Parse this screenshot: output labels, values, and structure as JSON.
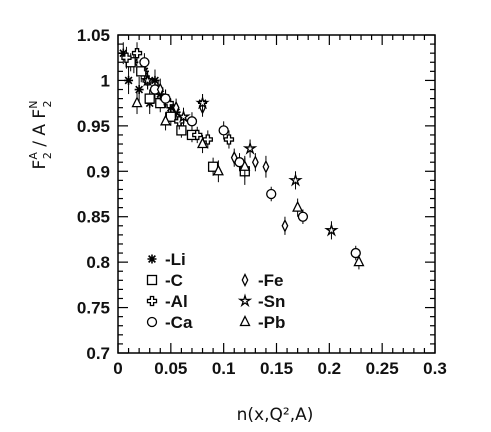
{
  "chart_data": {
    "type": "scatter",
    "title": "",
    "xlabel": "n(x,Q²,A)",
    "ylabel_parts": {
      "num": "F",
      "num_sup": "A",
      "num_sub": "2",
      "sep": " / A ",
      "den": "F",
      "den_sup": "N",
      "den_sub": "2"
    },
    "xlim": [
      0,
      0.3
    ],
    "ylim": [
      0.7,
      1.05
    ],
    "xticks": [
      "0",
      "0.05",
      "0.1",
      "0.15",
      "0.2",
      "0.25",
      "0.3"
    ],
    "yticks": [
      "0.7",
      "0.75",
      "0.8",
      "0.85",
      "0.9",
      "0.95",
      "1",
      "1.05"
    ],
    "grid": false,
    "legend_placement": "bottom-left",
    "legend": [
      {
        "marker": "asterisk",
        "label": "-Li"
      },
      {
        "marker": "square",
        "label": "-C"
      },
      {
        "marker": "cross",
        "label": "-Al"
      },
      {
        "marker": "circle",
        "label": "-Ca"
      },
      {
        "marker": "diamond",
        "label": "-Fe"
      },
      {
        "marker": "star",
        "label": "-Sn"
      },
      {
        "marker": "triangle",
        "label": "-Pb"
      }
    ],
    "series": [
      {
        "name": "-Li",
        "marker": "asterisk",
        "points": [
          {
            "x": 0.005,
            "y": 1.03,
            "err": 0.012
          },
          {
            "x": 0.01,
            "y": 1.0,
            "err": 0.015
          },
          {
            "x": 0.015,
            "y": 1.02,
            "err": 0.012
          },
          {
            "x": 0.02,
            "y": 0.99,
            "err": 0.014
          },
          {
            "x": 0.025,
            "y": 1.01,
            "err": 0.013
          },
          {
            "x": 0.03,
            "y": 0.975,
            "err": 0.012
          },
          {
            "x": 0.035,
            "y": 1.0,
            "err": 0.012
          },
          {
            "x": 0.04,
            "y": 0.985,
            "err": 0.011
          },
          {
            "x": 0.045,
            "y": 0.98,
            "err": 0.01
          },
          {
            "x": 0.05,
            "y": 0.97,
            "err": 0.01
          },
          {
            "x": 0.055,
            "y": 0.965,
            "err": 0.01
          },
          {
            "x": 0.08,
            "y": 0.975,
            "err": 0.01
          }
        ]
      },
      {
        "name": "-C",
        "marker": "square",
        "points": [
          {
            "x": 0.012,
            "y": 1.02,
            "err": 0.01
          },
          {
            "x": 0.022,
            "y": 1.01,
            "err": 0.012
          },
          {
            "x": 0.03,
            "y": 0.98,
            "err": 0.01
          },
          {
            "x": 0.04,
            "y": 0.975,
            "err": 0.01
          },
          {
            "x": 0.05,
            "y": 0.96,
            "err": 0.01
          },
          {
            "x": 0.06,
            "y": 0.945,
            "err": 0.008
          },
          {
            "x": 0.07,
            "y": 0.94,
            "err": 0.008
          },
          {
            "x": 0.09,
            "y": 0.905,
            "err": 0.01
          },
          {
            "x": 0.12,
            "y": 0.9,
            "err": 0.015
          }
        ]
      },
      {
        "name": "-Al",
        "marker": "cross",
        "points": [
          {
            "x": 0.008,
            "y": 1.025,
            "err": 0.012
          },
          {
            "x": 0.018,
            "y": 1.03,
            "err": 0.012
          },
          {
            "x": 0.028,
            "y": 1.0,
            "err": 0.01
          },
          {
            "x": 0.038,
            "y": 0.99,
            "err": 0.01
          },
          {
            "x": 0.048,
            "y": 0.975,
            "err": 0.01
          },
          {
            "x": 0.058,
            "y": 0.955,
            "err": 0.009
          },
          {
            "x": 0.075,
            "y": 0.94,
            "err": 0.009
          },
          {
            "x": 0.085,
            "y": 0.935,
            "err": 0.01
          },
          {
            "x": 0.105,
            "y": 0.935,
            "err": 0.01
          }
        ]
      },
      {
        "name": "-Ca",
        "marker": "circle",
        "points": [
          {
            "x": 0.025,
            "y": 1.02,
            "err": 0.01
          },
          {
            "x": 0.035,
            "y": 0.99,
            "err": 0.01
          },
          {
            "x": 0.045,
            "y": 0.98,
            "err": 0.01
          },
          {
            "x": 0.07,
            "y": 0.955,
            "err": 0.01
          },
          {
            "x": 0.1,
            "y": 0.945,
            "err": 0.01
          },
          {
            "x": 0.115,
            "y": 0.91,
            "err": 0.01
          },
          {
            "x": 0.145,
            "y": 0.875,
            "err": 0.008
          },
          {
            "x": 0.175,
            "y": 0.85,
            "err": 0.008
          },
          {
            "x": 0.225,
            "y": 0.81,
            "err": 0.008
          }
        ]
      },
      {
        "name": "-Fe",
        "marker": "diamond",
        "points": [
          {
            "x": 0.04,
            "y": 0.99,
            "err": 0.012
          },
          {
            "x": 0.055,
            "y": 0.97,
            "err": 0.01
          },
          {
            "x": 0.08,
            "y": 0.97,
            "err": 0.01
          },
          {
            "x": 0.11,
            "y": 0.915,
            "err": 0.01
          },
          {
            "x": 0.13,
            "y": 0.91,
            "err": 0.01
          },
          {
            "x": 0.14,
            "y": 0.905,
            "err": 0.012
          },
          {
            "x": 0.158,
            "y": 0.84,
            "err": 0.01
          }
        ]
      },
      {
        "name": "-Sn",
        "marker": "star",
        "points": [
          {
            "x": 0.028,
            "y": 1.0,
            "err": 0.01
          },
          {
            "x": 0.062,
            "y": 0.96,
            "err": 0.01
          },
          {
            "x": 0.08,
            "y": 0.975,
            "err": 0.01
          },
          {
            "x": 0.125,
            "y": 0.925,
            "err": 0.01
          },
          {
            "x": 0.168,
            "y": 0.89,
            "err": 0.01
          },
          {
            "x": 0.202,
            "y": 0.835,
            "err": 0.01
          }
        ]
      },
      {
        "name": "-Pb",
        "marker": "triangle",
        "points": [
          {
            "x": 0.018,
            "y": 0.975,
            "err": 0.012
          },
          {
            "x": 0.045,
            "y": 0.955,
            "err": 0.01
          },
          {
            "x": 0.08,
            "y": 0.93,
            "err": 0.01
          },
          {
            "x": 0.095,
            "y": 0.9,
            "err": 0.012
          },
          {
            "x": 0.12,
            "y": 0.905,
            "err": 0.012
          },
          {
            "x": 0.17,
            "y": 0.86,
            "err": 0.01
          },
          {
            "x": 0.228,
            "y": 0.8,
            "err": 0.008
          }
        ]
      }
    ]
  }
}
